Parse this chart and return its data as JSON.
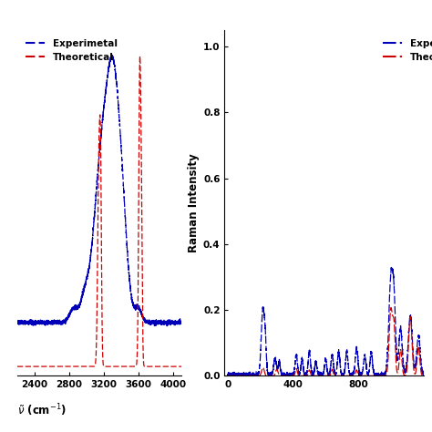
{
  "fig_width": 4.74,
  "fig_height": 4.74,
  "dpi": 100,
  "left_xlim": [
    2200,
    4100
  ],
  "left_xticks": [
    2400,
    2800,
    3200,
    3600,
    4000
  ],
  "right_xlim": [
    -20,
    1200
  ],
  "right_xticks": [
    0,
    400,
    800
  ],
  "right_ylabel": "Raman Intensity",
  "right_ylim": [
    0.0,
    1.05
  ],
  "right_yticks": [
    0.0,
    0.2,
    0.4,
    0.6,
    0.8,
    1.0
  ],
  "exp_color": "#0000bb",
  "theo_color": "#cc0000",
  "legend_exp": "Experimetal",
  "legend_theo": "Theoretical",
  "background": "#ffffff"
}
